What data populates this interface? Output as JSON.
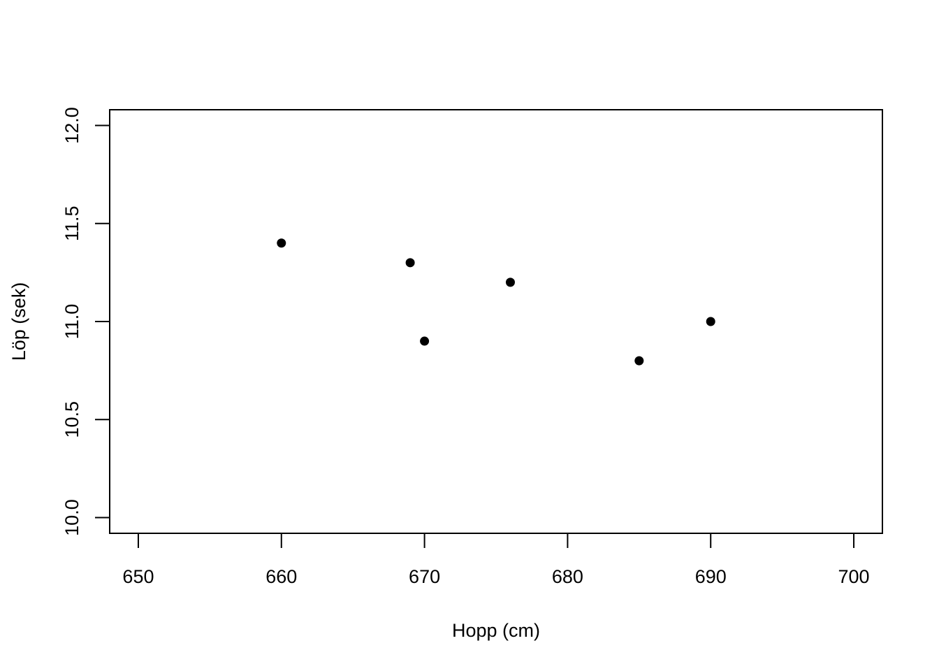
{
  "chart_data": {
    "type": "scatter",
    "title": "",
    "xlabel": "Hopp (cm)",
    "ylabel": "Löp (sek)",
    "x": [
      660,
      669,
      670,
      676,
      685,
      690
    ],
    "y": [
      11.4,
      11.3,
      10.9,
      11.2,
      10.8,
      11.0
    ],
    "xlim": [
      648,
      702
    ],
    "ylim": [
      9.92,
      12.08
    ],
    "xticks": [
      650,
      660,
      670,
      680,
      690,
      700
    ],
    "xtick_labels": [
      "650",
      "660",
      "670",
      "680",
      "690",
      "700"
    ],
    "yticks": [
      10.0,
      10.5,
      11.0,
      11.5,
      12.0
    ],
    "ytick_labels": [
      "10.0",
      "10.5",
      "11.0",
      "11.5",
      "12.0"
    ],
    "grid": false,
    "legend": "none",
    "marker_color": "#000000",
    "marker": "filled-circle"
  }
}
